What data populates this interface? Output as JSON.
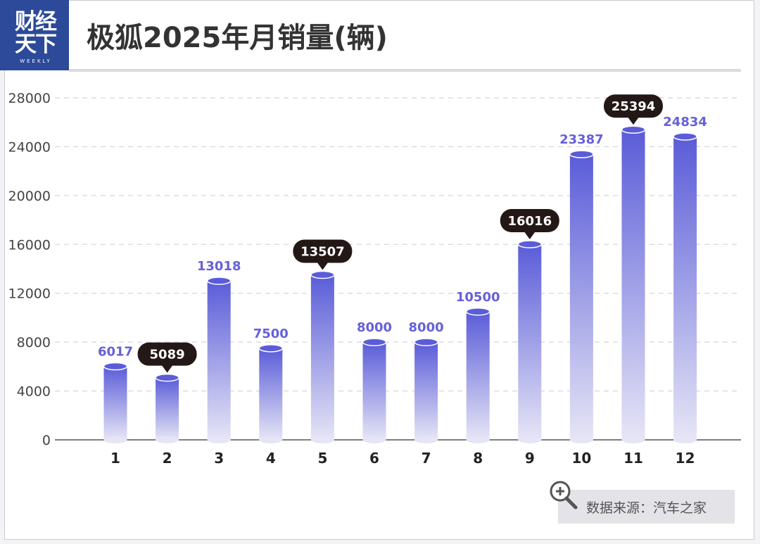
{
  "brand": {
    "line1": "财经",
    "line2": "天下",
    "sub": "WEEKLY"
  },
  "title": "极狐2025年月销量(辆)",
  "source": "数据来源：汽车之家",
  "colors": {
    "bar_top": "#5a5cd8",
    "bar_bottom": "#e6e5f6",
    "value_label": "#6660d8",
    "callout_bg": "#231815",
    "header_bg": "#2c4a99"
  },
  "chart_data": {
    "type": "bar",
    "title": "极狐2025年月销量(辆)",
    "xlabel": "",
    "ylabel": "",
    "categories": [
      "1",
      "2",
      "3",
      "4",
      "5",
      "6",
      "7",
      "8",
      "9",
      "10",
      "11",
      "12"
    ],
    "values": [
      6017,
      5089,
      13018,
      7500,
      13507,
      8000,
      8000,
      10500,
      16016,
      23387,
      25394,
      24834
    ],
    "value_labels": [
      "6017",
      "5089",
      "13018",
      "7500",
      "13507",
      "8000",
      "8000",
      "10500",
      "16016",
      "23387",
      "25394",
      "24834"
    ],
    "highlighted": [
      false,
      true,
      false,
      false,
      true,
      false,
      false,
      false,
      true,
      false,
      true,
      false
    ],
    "yticks": [
      0,
      4000,
      8000,
      12000,
      16000,
      20000,
      24000,
      28000
    ],
    "ytick_labels": [
      "0",
      "4000",
      "8000",
      "12000",
      "16000",
      "20000",
      "24000",
      "28000"
    ],
    "ylim": [
      0,
      28000
    ],
    "grid": true,
    "legend": "none"
  }
}
